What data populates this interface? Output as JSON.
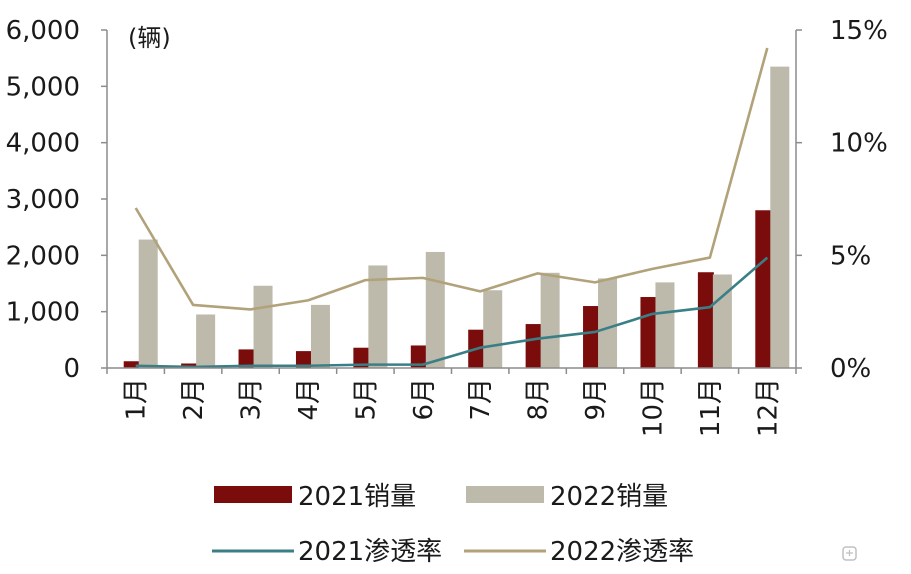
{
  "chart_data": {
    "type": "bar",
    "categories": [
      "1月",
      "2月",
      "3月",
      "4月",
      "5月",
      "6月",
      "7月",
      "8月",
      "9月",
      "10月",
      "11月",
      "12月"
    ],
    "unit_label": "(辆)",
    "y_left": {
      "min": 0,
      "max": 6000,
      "ticks": [
        "0",
        "1,000",
        "2,000",
        "3,000",
        "4,000",
        "5,000",
        "6,000"
      ]
    },
    "y_right": {
      "min": 0,
      "max": 15,
      "ticks": [
        "0%",
        "5%",
        "10%",
        "15%"
      ]
    },
    "series": [
      {
        "name": "2021销量",
        "kind": "bar",
        "axis": "left",
        "color": "#7b0c0c",
        "values": [
          120,
          80,
          330,
          300,
          360,
          400,
          680,
          780,
          1100,
          1260,
          1700,
          2800
        ]
      },
      {
        "name": "2022销量",
        "kind": "bar",
        "axis": "left",
        "color": "#bdb9ab",
        "values": [
          2280,
          950,
          1460,
          1120,
          1820,
          2060,
          1380,
          1690,
          1590,
          1520,
          1660,
          5350
        ]
      },
      {
        "name": "2021渗透率",
        "kind": "line",
        "axis": "right",
        "unit": "%",
        "color": "#3b7f86",
        "values": [
          0.1,
          0.05,
          0.1,
          0.1,
          0.15,
          0.15,
          0.9,
          1.3,
          1.6,
          2.4,
          2.7,
          4.9
        ]
      },
      {
        "name": "2022渗透率",
        "kind": "line",
        "axis": "right",
        "unit": "%",
        "color": "#b2a27a",
        "values": [
          7.1,
          2.8,
          2.6,
          3.0,
          3.9,
          4.0,
          3.4,
          4.2,
          3.8,
          4.4,
          4.9,
          14.2
        ]
      }
    ],
    "legend_position": "bottom",
    "grid": false
  },
  "watermark": {
    "icon": "gelonghui-logo-icon"
  }
}
